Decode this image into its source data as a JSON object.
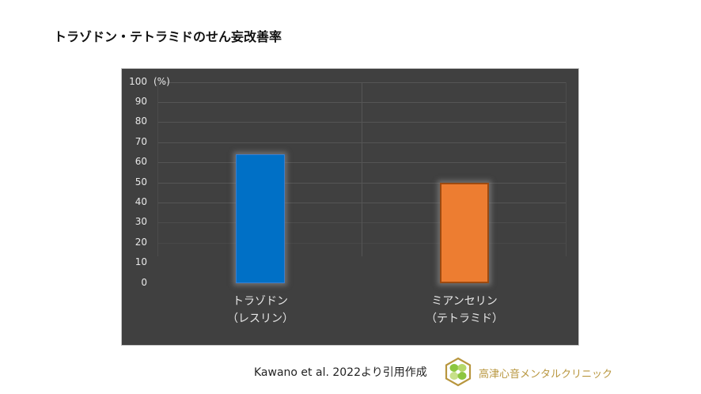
{
  "title": "トラゾドン・テトラミドのせん妄改善率",
  "chart_data": {
    "type": "bar",
    "title": "トラゾドン・テトラミドのせん妄改善率",
    "categories": [
      "トラゾドン（レスリン）",
      "ミアンセリン（テトラミド）"
    ],
    "category_lines": [
      [
        "トラゾドン",
        "（レスリン）"
      ],
      [
        "ミアンセリン",
        "（テトラミド）"
      ]
    ],
    "values": [
      64,
      50
    ],
    "colors": [
      "#0070c6",
      "#ed7d31"
    ],
    "xlabel": "",
    "ylabel": "(%)",
    "ylim": [
      0,
      100
    ],
    "yticks": [
      "100",
      "90",
      "80",
      "70",
      "60",
      "50",
      "40",
      "30",
      "20",
      "10",
      "0"
    ],
    "grid": true,
    "legend": "none",
    "background": "#404040"
  },
  "footer": {
    "citation": "Kawano et al. 2022より引用作成",
    "clinic_name": "高津心音メンタルクリニック",
    "logo_icon": "clover-hexagon-logo"
  }
}
